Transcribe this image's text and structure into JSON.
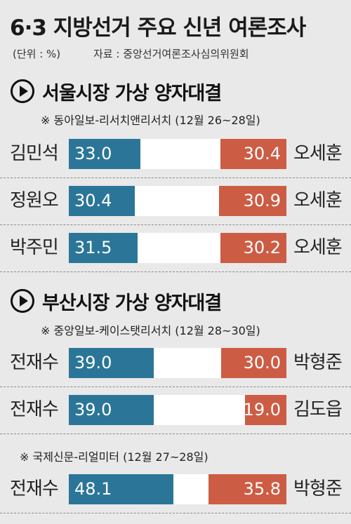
{
  "header": {
    "title": "6·3 지방선거 주요 신년 여론조사",
    "unit": "(단위 : %)",
    "source": "자료 : 중앙선거여론조사심의위원회"
  },
  "colors": {
    "left_bar": "#2b7698",
    "right_bar": "#cd5c44",
    "background": "#e9e9e9"
  },
  "chart_data": [
    {
      "type": "bar",
      "title": "서울시장 가상 양자대결",
      "xlim": [
        0,
        100
      ],
      "groups": [
        {
          "poll": "※ 동아일보-리서치앤리서치 (12월 26~28일)",
          "matchups": [
            {
              "left": {
                "name": "김민석",
                "value": 33.0,
                "label": "33.0"
              },
              "right": {
                "name": "오세훈",
                "value": 30.4,
                "label": "30.4"
              }
            },
            {
              "left": {
                "name": "정원오",
                "value": 30.4,
                "label": "30.4"
              },
              "right": {
                "name": "오세훈",
                "value": 30.9,
                "label": "30.9"
              }
            },
            {
              "left": {
                "name": "박주민",
                "value": 31.5,
                "label": "31.5"
              },
              "right": {
                "name": "오세훈",
                "value": 30.2,
                "label": "30.2"
              }
            }
          ]
        }
      ]
    },
    {
      "type": "bar",
      "title": "부산시장 가상 양자대결",
      "xlim": [
        0,
        100
      ],
      "groups": [
        {
          "poll": "※ 중앙일보-케이스탯리서치 (12월 28~30일)",
          "matchups": [
            {
              "left": {
                "name": "전재수",
                "value": 39.0,
                "label": "39.0"
              },
              "right": {
                "name": "박형준",
                "value": 30.0,
                "label": "30.0"
              }
            },
            {
              "left": {
                "name": "전재수",
                "value": 39.0,
                "label": "39.0"
              },
              "right": {
                "name": "김도읍",
                "value": 19.0,
                "label": "19.0"
              }
            }
          ]
        },
        {
          "poll": "※ 국제신문-리얼미터 (12월 27~28일)",
          "matchups": [
            {
              "left": {
                "name": "전재수",
                "value": 48.1,
                "label": "48.1"
              },
              "right": {
                "name": "박형준",
                "value": 35.8,
                "label": "35.8"
              }
            }
          ]
        }
      ]
    }
  ]
}
